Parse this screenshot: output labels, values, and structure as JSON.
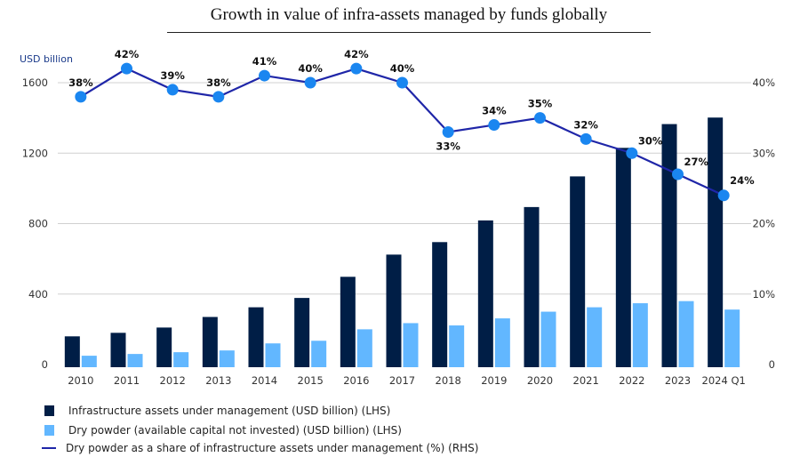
{
  "chart_data": {
    "type": "bar",
    "title": "Growth in value of infra-assets managed by funds globally",
    "ylabel": "USD billion",
    "ylim": [
      0,
      1600
    ],
    "y2lim": [
      0,
      40
    ],
    "yticks": [
      "0",
      "400",
      "800",
      "1200",
      "1600"
    ],
    "y2ticks": [
      "0",
      "10%",
      "20%",
      "30%",
      "40%"
    ],
    "grid": true,
    "legend_position": "bottom-left",
    "categories": [
      "2010",
      "2011",
      "2012",
      "2013",
      "2014",
      "2015",
      "2016",
      "2017",
      "2018",
      "2019",
      "2020",
      "2021",
      "2022",
      "2023",
      "2024 Q1"
    ],
    "series": [
      {
        "name": "Infrastructure assets under management (USD billion) (LHS)",
        "type": "bar",
        "axis": "left",
        "color": "#001e46",
        "values": [
          160,
          180,
          210,
          270,
          325,
          378,
          498,
          624,
          695,
          818,
          894,
          1068,
          1230,
          1365,
          1402
        ]
      },
      {
        "name": "Dry powder (available capital not invested) (USD billion) (LHS)",
        "type": "bar",
        "axis": "left",
        "color": "#62b7ff",
        "values": [
          50,
          60,
          70,
          80,
          120,
          135,
          200,
          235,
          222,
          262,
          300,
          325,
          348,
          360,
          312
        ]
      },
      {
        "name": "Dry powder as a share of infrastructure assets under management (%) (RHS)",
        "type": "line",
        "axis": "right",
        "color": "#1f26a8",
        "marker_color": "#1a86f0",
        "values": [
          38,
          42,
          39,
          38,
          41,
          40,
          42,
          40,
          33,
          34,
          35,
          32,
          30,
          27,
          24
        ],
        "labels": [
          "38%",
          "42%",
          "39%",
          "38%",
          "41%",
          "40%",
          "42%",
          "40%",
          "33%",
          "34%",
          "35%",
          "32%",
          "30%",
          "27%",
          "24%"
        ]
      }
    ]
  }
}
